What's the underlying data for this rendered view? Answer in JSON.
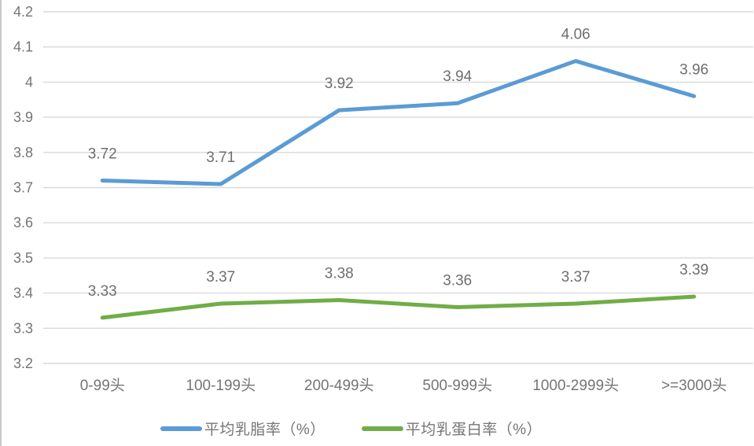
{
  "chart_data": {
    "type": "line",
    "categories": [
      "0-99头",
      "100-199头",
      "200-499头",
      "500-999头",
      "1000-2999头",
      ">=3000头"
    ],
    "series": [
      {
        "name": "平均乳脂率（%）",
        "color": "#5b9bd5",
        "values": [
          3.72,
          3.71,
          3.92,
          3.94,
          4.06,
          3.96
        ],
        "point_labels": [
          "3.72",
          "3.71",
          "3.92",
          "3.94",
          "4.06",
          "3.96"
        ]
      },
      {
        "name": "平均乳蛋白率（%）",
        "color": "#70ad47",
        "values": [
          3.33,
          3.37,
          3.38,
          3.36,
          3.37,
          3.39
        ],
        "point_labels": [
          "3.33",
          "3.37",
          "3.38",
          "3.36",
          "3.37",
          "3.39"
        ]
      }
    ],
    "title": "",
    "xlabel": "",
    "ylabel": "",
    "ylim": [
      3.2,
      4.2
    ],
    "ytick_step": 0.1,
    "ytick_labels": [
      "3.2",
      "3.3",
      "3.4",
      "3.5",
      "3.6",
      "3.7",
      "3.8",
      "3.9",
      "4",
      "4.1",
      "4.2"
    ],
    "grid": true,
    "data_labels_shown": true,
    "legend_position": "bottom",
    "colors": {
      "gridline": "#d9d9d9",
      "tick_text": "#757575",
      "data_label_text": "#6e6e6e",
      "frame_border": "#c9c9c9"
    }
  }
}
